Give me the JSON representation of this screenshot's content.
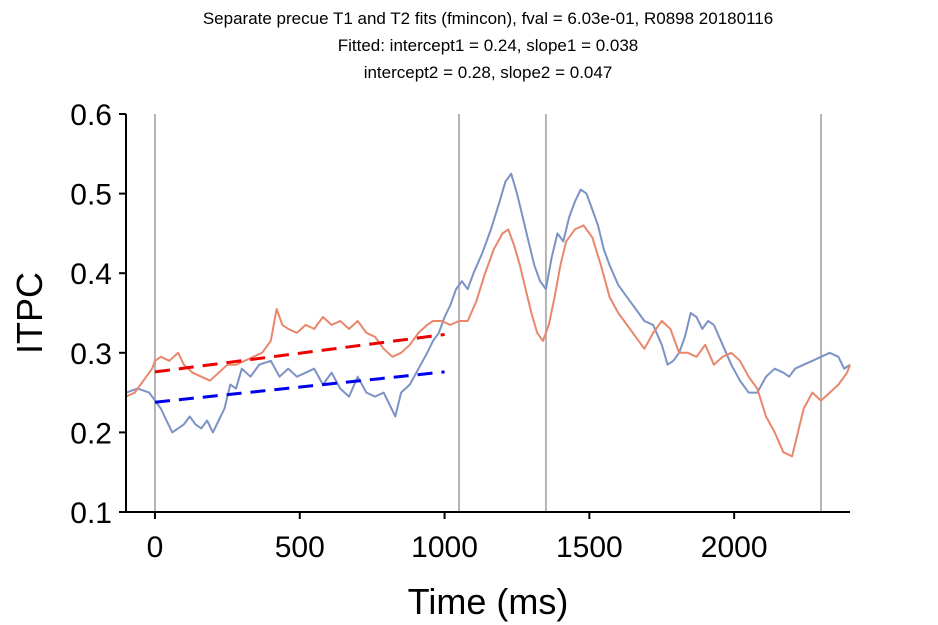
{
  "chart_data": {
    "type": "line",
    "title": [
      "Separate precue T1 and T2 fits (fmincon), fval = 6.03e-01, R0898 20180116",
      "Fitted: intercept1 = 0.24, slope1 = 0.038",
      "intercept2 = 0.28, slope2 = 0.047"
    ],
    "xlabel": "Time (ms)",
    "ylabel": "ITPC",
    "xlim": [
      -100,
      2400
    ],
    "ylim": [
      0.1,
      0.6
    ],
    "xticks": [
      0,
      500,
      1000,
      1500,
      2000
    ],
    "xtick_labels": [
      "0",
      "500",
      "1000",
      "1500",
      "2000"
    ],
    "yticks": [
      0.1,
      0.2,
      0.3,
      0.4,
      0.5,
      0.6
    ],
    "ytick_labels": [
      "0.1",
      "0.2",
      "0.3",
      "0.4",
      "0.5",
      "0.6"
    ],
    "grid": false,
    "vertical_lines": [
      0,
      1050,
      1350,
      2300
    ],
    "series": [
      {
        "color": "#7b93c4",
        "style": "solid",
        "x": [
          -100,
          -60,
          -20,
          0,
          20,
          40,
          60,
          80,
          100,
          120,
          140,
          160,
          180,
          200,
          220,
          240,
          260,
          280,
          300,
          330,
          360,
          400,
          430,
          460,
          490,
          520,
          550,
          580,
          610,
          640,
          670,
          700,
          730,
          760,
          790,
          810,
          830,
          850,
          880,
          910,
          940,
          960,
          980,
          1000,
          1020,
          1040,
          1060,
          1080,
          1100,
          1130,
          1160,
          1190,
          1210,
          1230,
          1250,
          1270,
          1290,
          1310,
          1330,
          1350,
          1370,
          1390,
          1410,
          1430,
          1450,
          1470,
          1490,
          1510,
          1530,
          1550,
          1570,
          1600,
          1630,
          1660,
          1690,
          1720,
          1750,
          1770,
          1790,
          1810,
          1830,
          1850,
          1870,
          1890,
          1910,
          1930,
          1960,
          1990,
          2020,
          2050,
          2080,
          2110,
          2140,
          2170,
          2190,
          2210,
          2240,
          2270,
          2300,
          2330,
          2360,
          2380,
          2400
        ],
        "y": [
          0.25,
          0.255,
          0.25,
          0.24,
          0.23,
          0.215,
          0.2,
          0.205,
          0.21,
          0.22,
          0.21,
          0.205,
          0.215,
          0.2,
          0.215,
          0.23,
          0.26,
          0.255,
          0.28,
          0.27,
          0.285,
          0.29,
          0.27,
          0.28,
          0.27,
          0.275,
          0.28,
          0.26,
          0.275,
          0.255,
          0.245,
          0.27,
          0.25,
          0.245,
          0.25,
          0.235,
          0.22,
          0.25,
          0.26,
          0.28,
          0.3,
          0.315,
          0.325,
          0.345,
          0.36,
          0.38,
          0.39,
          0.38,
          0.4,
          0.425,
          0.455,
          0.49,
          0.515,
          0.525,
          0.5,
          0.47,
          0.44,
          0.41,
          0.39,
          0.38,
          0.42,
          0.45,
          0.44,
          0.47,
          0.49,
          0.505,
          0.5,
          0.48,
          0.46,
          0.43,
          0.41,
          0.385,
          0.37,
          0.355,
          0.34,
          0.335,
          0.31,
          0.285,
          0.29,
          0.3,
          0.32,
          0.35,
          0.345,
          0.33,
          0.34,
          0.335,
          0.31,
          0.285,
          0.265,
          0.25,
          0.25,
          0.27,
          0.28,
          0.275,
          0.27,
          0.28,
          0.285,
          0.29,
          0.295,
          0.3,
          0.295,
          0.28,
          0.285
        ]
      },
      {
        "color": "#e8876c",
        "style": "solid",
        "x": [
          -100,
          -70,
          -40,
          -10,
          0,
          20,
          50,
          80,
          100,
          130,
          160,
          190,
          220,
          250,
          280,
          310,
          340,
          370,
          400,
          420,
          440,
          460,
          490,
          520,
          550,
          580,
          610,
          640,
          670,
          700,
          730,
          760,
          790,
          820,
          850,
          880,
          910,
          940,
          960,
          990,
          1020,
          1050,
          1080,
          1110,
          1140,
          1170,
          1200,
          1220,
          1240,
          1260,
          1280,
          1300,
          1320,
          1340,
          1360,
          1380,
          1400,
          1420,
          1450,
          1480,
          1510,
          1540,
          1570,
          1600,
          1630,
          1660,
          1690,
          1720,
          1750,
          1780,
          1810,
          1840,
          1870,
          1900,
          1930,
          1960,
          1990,
          2020,
          2050,
          2080,
          2110,
          2140,
          2170,
          2200,
          2220,
          2240,
          2270,
          2300,
          2330,
          2360,
          2390,
          2400
        ],
        "y": [
          0.245,
          0.25,
          0.265,
          0.28,
          0.29,
          0.295,
          0.29,
          0.3,
          0.285,
          0.275,
          0.27,
          0.265,
          0.275,
          0.285,
          0.285,
          0.29,
          0.295,
          0.3,
          0.315,
          0.355,
          0.335,
          0.33,
          0.325,
          0.335,
          0.33,
          0.345,
          0.335,
          0.34,
          0.33,
          0.34,
          0.325,
          0.32,
          0.305,
          0.295,
          0.3,
          0.31,
          0.325,
          0.335,
          0.34,
          0.34,
          0.335,
          0.34,
          0.34,
          0.365,
          0.4,
          0.43,
          0.45,
          0.455,
          0.435,
          0.41,
          0.38,
          0.35,
          0.325,
          0.315,
          0.335,
          0.37,
          0.41,
          0.44,
          0.455,
          0.46,
          0.445,
          0.41,
          0.37,
          0.35,
          0.335,
          0.32,
          0.305,
          0.325,
          0.34,
          0.33,
          0.3,
          0.3,
          0.295,
          0.31,
          0.285,
          0.295,
          0.3,
          0.29,
          0.27,
          0.255,
          0.22,
          0.2,
          0.175,
          0.17,
          0.2,
          0.23,
          0.25,
          0.24,
          0.25,
          0.26,
          0.275,
          0.285
        ]
      },
      {
        "color": "#0000ee",
        "style": "dashed",
        "x": [
          0,
          1000
        ],
        "y": [
          0.238,
          0.276
        ]
      },
      {
        "color": "#ee0000",
        "style": "dashed",
        "x": [
          0,
          1000
        ],
        "y": [
          0.276,
          0.323
        ]
      }
    ]
  }
}
